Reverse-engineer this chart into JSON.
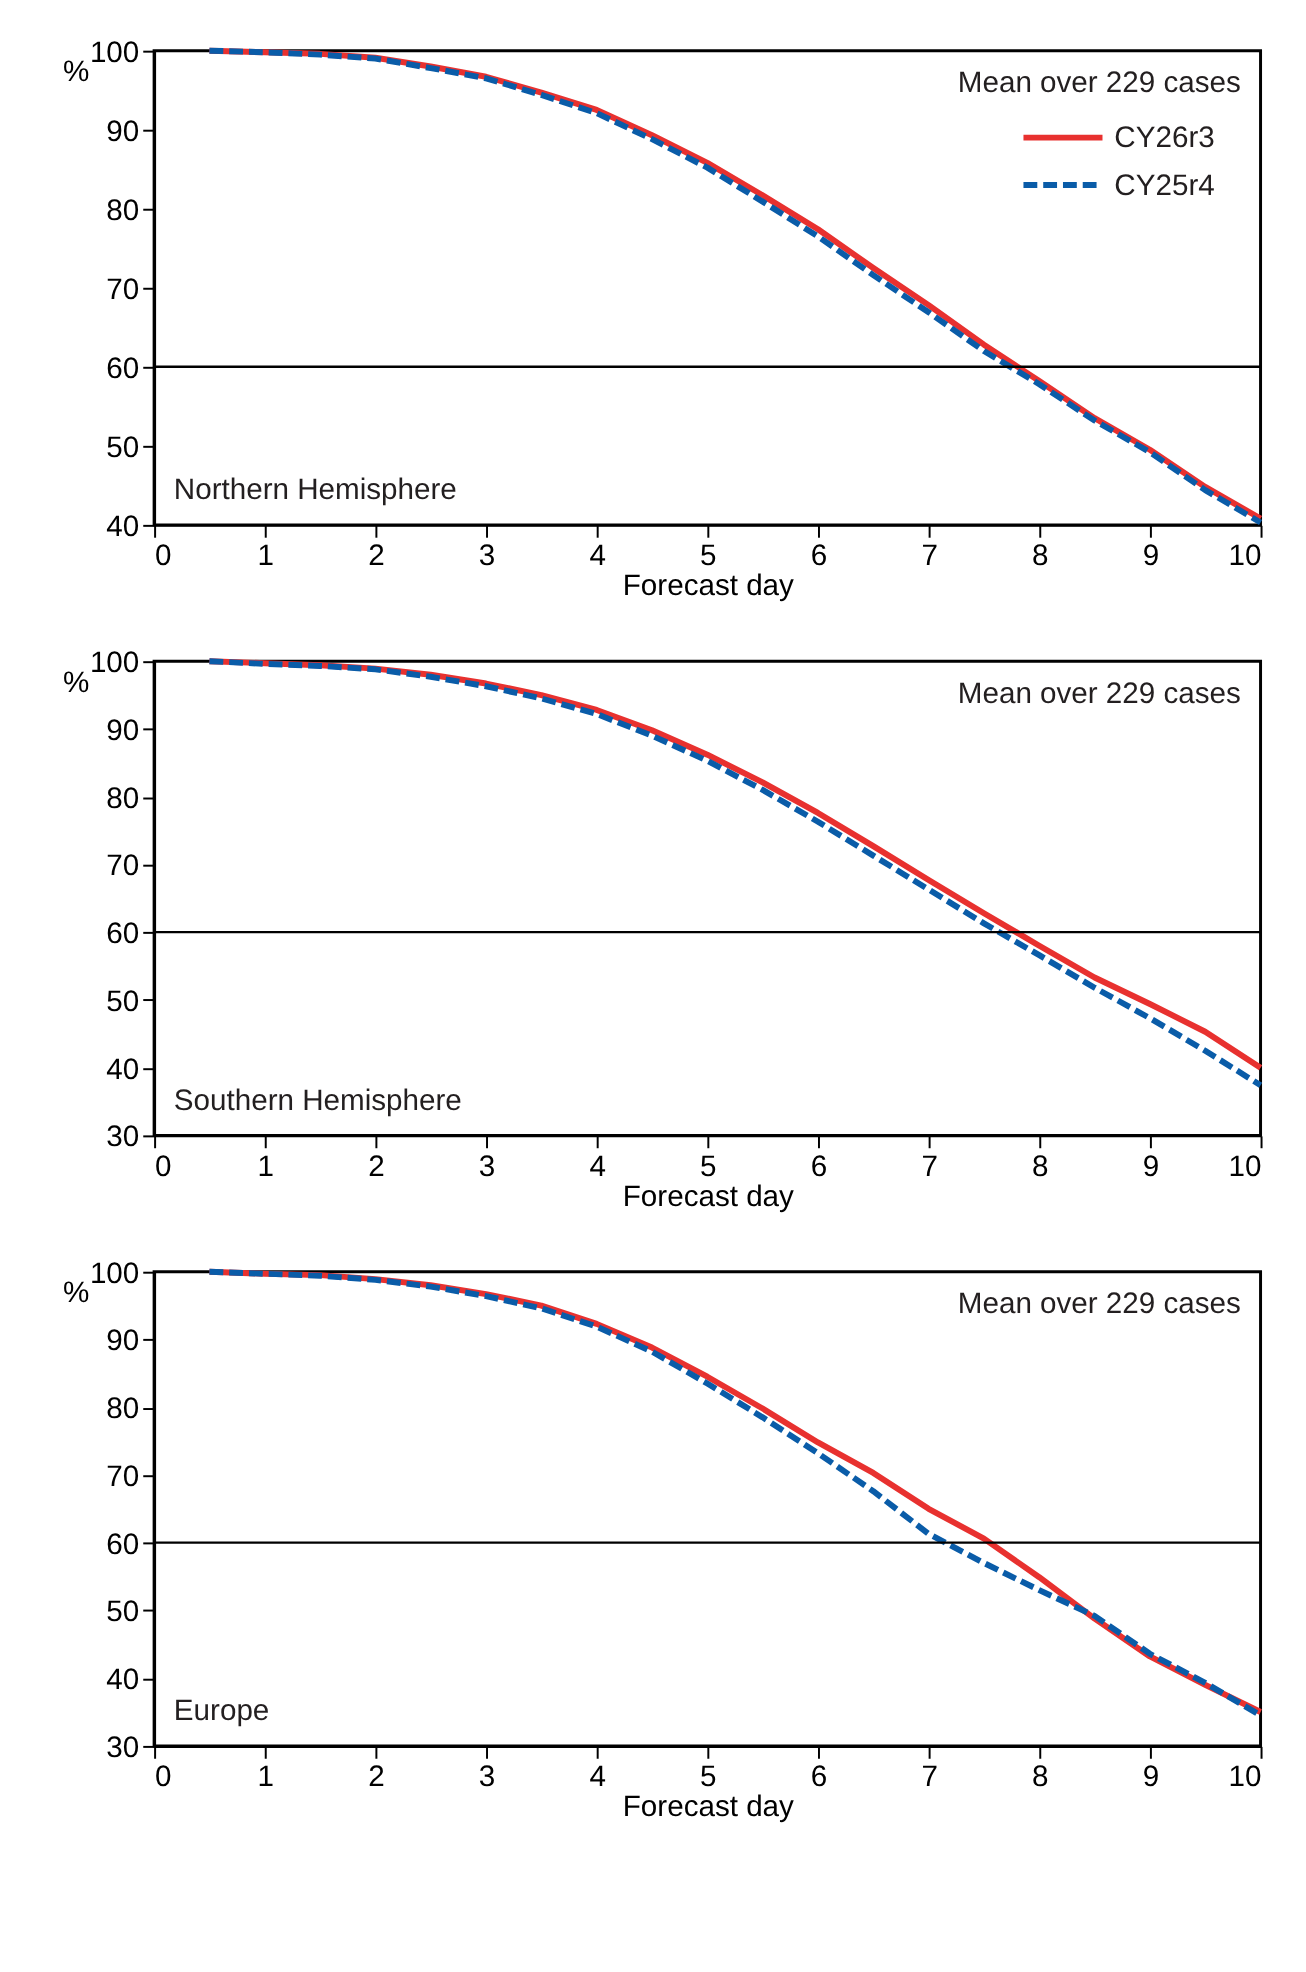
{
  "chart_data": [
    {
      "type": "line",
      "ylabel": "%",
      "xlabel": "Forecast day",
      "xlim": [
        0,
        10
      ],
      "xticks": [
        0,
        1,
        2,
        3,
        4,
        5,
        6,
        7,
        8,
        9,
        10
      ],
      "ylim": [
        40,
        100
      ],
      "yticks": [
        40,
        50,
        60,
        70,
        80,
        90,
        100
      ],
      "grid": false,
      "legend": "top right",
      "x": [
        0.5,
        1,
        1.5,
        2,
        2.5,
        3,
        3.5,
        4,
        4.5,
        5,
        5.5,
        6,
        6.5,
        7,
        7.5,
        8,
        8.5,
        9,
        9.5,
        10
      ],
      "series": [
        {
          "name": "CY26r3",
          "color": "#e8312f",
          "line_style": "solid",
          "values": [
            100,
            99.8,
            99.6,
            99.1,
            98.0,
            96.7,
            94.7,
            92.5,
            89.3,
            85.8,
            81.7,
            77.4,
            72.5,
            67.8,
            62.8,
            58.2,
            53.5,
            49.5,
            44.8,
            40.8
          ]
        },
        {
          "name": "CY25r4",
          "color": "#0a5ca8",
          "line_style": "dashed",
          "values": [
            100,
            99.8,
            99.5,
            99.0,
            97.8,
            96.5,
            94.4,
            92.1,
            88.8,
            85.2,
            80.9,
            76.5,
            71.6,
            66.9,
            62.0,
            57.8,
            53.2,
            49.2,
            44.4,
            40.3
          ]
        }
      ],
      "ref_lines": [
        {
          "axis": "y",
          "value": 60,
          "color": "#000000"
        }
      ],
      "annotations": [
        "Mean over 229 cases",
        "Northern Hemisphere"
      ]
    },
    {
      "type": "line",
      "ylabel": "%",
      "xlabel": "Forecast day",
      "xlim": [
        0,
        10
      ],
      "xticks": [
        0,
        1,
        2,
        3,
        4,
        5,
        6,
        7,
        8,
        9,
        10
      ],
      "ylim": [
        30,
        100
      ],
      "yticks": [
        30,
        40,
        50,
        60,
        70,
        80,
        90,
        100
      ],
      "grid": false,
      "x": [
        0.5,
        1,
        1.5,
        2,
        2.5,
        3,
        3.5,
        4,
        4.5,
        5,
        5.5,
        6,
        6.5,
        7,
        7.5,
        8,
        8.5,
        9,
        9.5,
        10
      ],
      "series": [
        {
          "color": "#e8312f",
          "line_style": "solid",
          "values": [
            100,
            99.7,
            99.4,
            98.9,
            98.0,
            96.7,
            95.0,
            92.8,
            89.8,
            86.2,
            82.1,
            77.6,
            72.7,
            67.7,
            62.8,
            58.0,
            53.3,
            49.4,
            45.3,
            40.0
          ]
        },
        {
          "color": "#0a5ca8",
          "line_style": "dashed",
          "values": [
            100,
            99.6,
            99.3,
            98.8,
            97.7,
            96.3,
            94.5,
            92.2,
            89.0,
            85.3,
            81.0,
            76.3,
            71.3,
            66.3,
            61.3,
            56.6,
            51.8,
            47.3,
            42.5,
            37.4
          ]
        }
      ],
      "ref_lines": [
        {
          "axis": "y",
          "value": 60,
          "color": "#000000"
        }
      ],
      "annotations": [
        "Mean over 229 cases",
        "Southern Hemisphere"
      ]
    },
    {
      "type": "line",
      "ylabel": "%",
      "xlabel": "Forecast day",
      "xlim": [
        0,
        10
      ],
      "xticks": [
        0,
        1,
        2,
        3,
        4,
        5,
        6,
        7,
        8,
        9,
        10
      ],
      "ylim": [
        30,
        100
      ],
      "yticks": [
        30,
        40,
        50,
        60,
        70,
        80,
        90,
        100
      ],
      "grid": false,
      "x": [
        0.5,
        1,
        1.5,
        2,
        2.5,
        3,
        3.5,
        4,
        4.5,
        5,
        5.5,
        6,
        6.5,
        7,
        7.5,
        8,
        8.5,
        9,
        9.5,
        10
      ],
      "series": [
        {
          "color": "#e8312f",
          "line_style": "solid",
          "values": [
            100,
            99.7,
            99.5,
            98.9,
            98.0,
            96.7,
            95.0,
            92.3,
            88.8,
            84.5,
            79.8,
            74.8,
            70.3,
            65.0,
            60.6,
            54.9,
            48.8,
            43.2,
            39.0,
            35.0
          ]
        },
        {
          "color": "#0a5ca8",
          "line_style": "dashed",
          "values": [
            100,
            99.7,
            99.4,
            98.8,
            97.8,
            96.4,
            94.6,
            91.9,
            88.2,
            83.5,
            78.5,
            73.2,
            67.6,
            61.3,
            57.0,
            53.0,
            49.2,
            43.6,
            39.3,
            34.5
          ]
        }
      ],
      "ref_lines": [
        {
          "axis": "y",
          "value": 60,
          "color": "#000000"
        }
      ],
      "annotations": [
        "Mean over 229 cases",
        "Europe"
      ]
    }
  ]
}
